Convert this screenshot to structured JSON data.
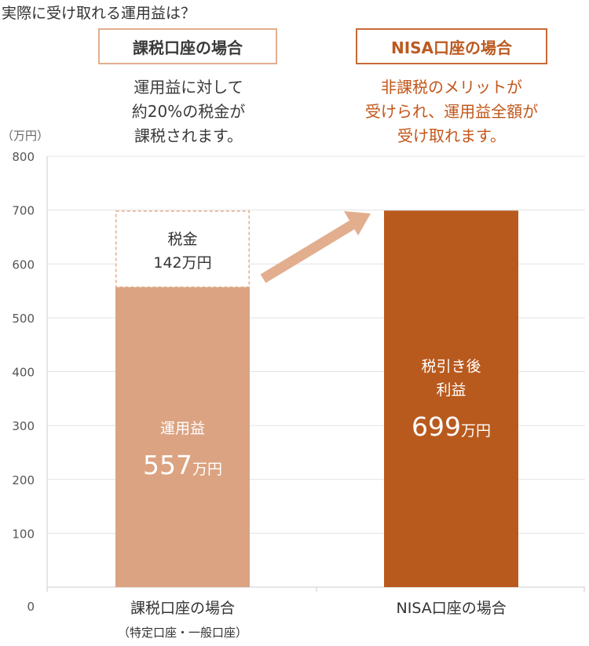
{
  "title": "実際に受け取れる運用益は？",
  "cases": [
    {
      "label": "課税口座の場合",
      "description": "運用益に対して\n約20%の税金が\n課税されます。"
    },
    {
      "label": "NISA口座の場合",
      "description": "非課税のメリットが\n受けられ、運用益全額が\n受け取れます。"
    }
  ],
  "y_unit": "（万円）",
  "chart_data": {
    "type": "bar",
    "categories": [
      "課税口座の場合",
      "NISA口座の場合"
    ],
    "category_sublabels": [
      "（特定口座・一般口座）",
      ""
    ],
    "ylim": [
      0,
      800
    ],
    "yticks": [
      0,
      100,
      200,
      300,
      400,
      500,
      600,
      700,
      800
    ],
    "grid": true,
    "bars": [
      {
        "category": "課税口座の場合",
        "segments": [
          {
            "value": 557,
            "label": "運用益",
            "value_text": "557",
            "unit": "万円",
            "style": "solid",
            "color": "#dba381"
          },
          {
            "value": 142,
            "label": "税金",
            "value_text": "142万円",
            "style": "dashed",
            "color": "#ffffff"
          }
        ]
      },
      {
        "category": "NISA口座の場合",
        "segments": [
          {
            "value": 699,
            "label": "税引き後\n利益",
            "value_text": "699",
            "unit": "万円",
            "style": "solid",
            "color": "#b85a1e"
          }
        ]
      }
    ],
    "arrow_color": "#e2ae8e",
    "axis_color": "#cccccc"
  }
}
